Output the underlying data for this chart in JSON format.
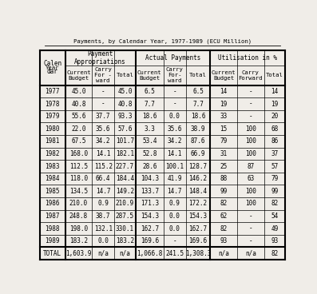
{
  "title": "Payments, by Calendar Year, 1977-1989 (ECU Million)",
  "level1_headers": [
    "Calen-\ndar",
    "Payment\nAppropriations",
    "Actual Payments",
    "Utilisation in %"
  ],
  "level2_headers": [
    "Year",
    "Current\nBudget",
    "Carry\nFor -\nward",
    "Total",
    "Current\nBudget",
    "Carry\nFor-\nward",
    "Total",
    "Current\nBudget",
    "Carry\nForward",
    "Total"
  ],
  "rows": [
    [
      "1977",
      "45.0",
      "-",
      "45.0",
      "6.5",
      "-",
      "6.5",
      "14",
      "-",
      "14"
    ],
    [
      "1978",
      "40.8",
      "-",
      "40.8",
      "7.7",
      "-",
      "7.7",
      "19",
      "-",
      "19"
    ],
    [
      "1979",
      "55.6",
      "37.7",
      "93.3",
      "18.6",
      "0.0",
      "18.6",
      "33",
      "-",
      "20"
    ],
    [
      "1980",
      "22.0",
      "35.6",
      "57.6",
      "3.3",
      "35.6",
      "38.9",
      "15",
      "100",
      "68"
    ],
    [
      "1981",
      "67.5",
      "34.2",
      "101.7",
      "53.4",
      "34.2",
      "87.6",
      "79",
      "100",
      "86"
    ],
    [
      "1982",
      "168.0",
      "14.1",
      "182.1",
      "52.8",
      "14.1",
      "66.9",
      "31",
      "100",
      "37"
    ],
    [
      "1983",
      "112.5",
      "115.2",
      "227.7",
      "28.6",
      "100.1",
      "128.7",
      "25",
      "87",
      "57"
    ],
    [
      "1984",
      "118.0",
      "66.4",
      "184.4",
      "104.3",
      "41.9",
      "146.2",
      "88",
      "63",
      "79"
    ],
    [
      "1985",
      "134.5",
      "14.7",
      "149.2",
      "133.7",
      "14.7",
      "148.4",
      "99",
      "100",
      "99"
    ],
    [
      "1986",
      "210.0",
      "0.9",
      "210.9",
      "171.3",
      "0.9",
      "172.2",
      "82",
      "100",
      "82"
    ],
    [
      "1987",
      "248.8",
      "38.7",
      "287.5",
      "154.3",
      "0.0",
      "154.3",
      "62",
      "-",
      "54"
    ],
    [
      "1988",
      "198.0",
      "132.1",
      "330.1",
      "162.7",
      "0.0",
      "162.7",
      "82",
      "-",
      "49"
    ],
    [
      "1989",
      "183.2",
      "0.0",
      "183.2",
      "169.6",
      "-",
      "169.6",
      "93",
      "-",
      "93"
    ]
  ],
  "total_row": [
    "TOTAL",
    "1,603.9",
    "n/a",
    "n/a",
    "1,066.8",
    "241.5",
    "1,308.3",
    "n/a",
    "n/a",
    "82"
  ],
  "bg_color": "#f0ede8",
  "text_color": "#000000",
  "font_size": 5.5
}
